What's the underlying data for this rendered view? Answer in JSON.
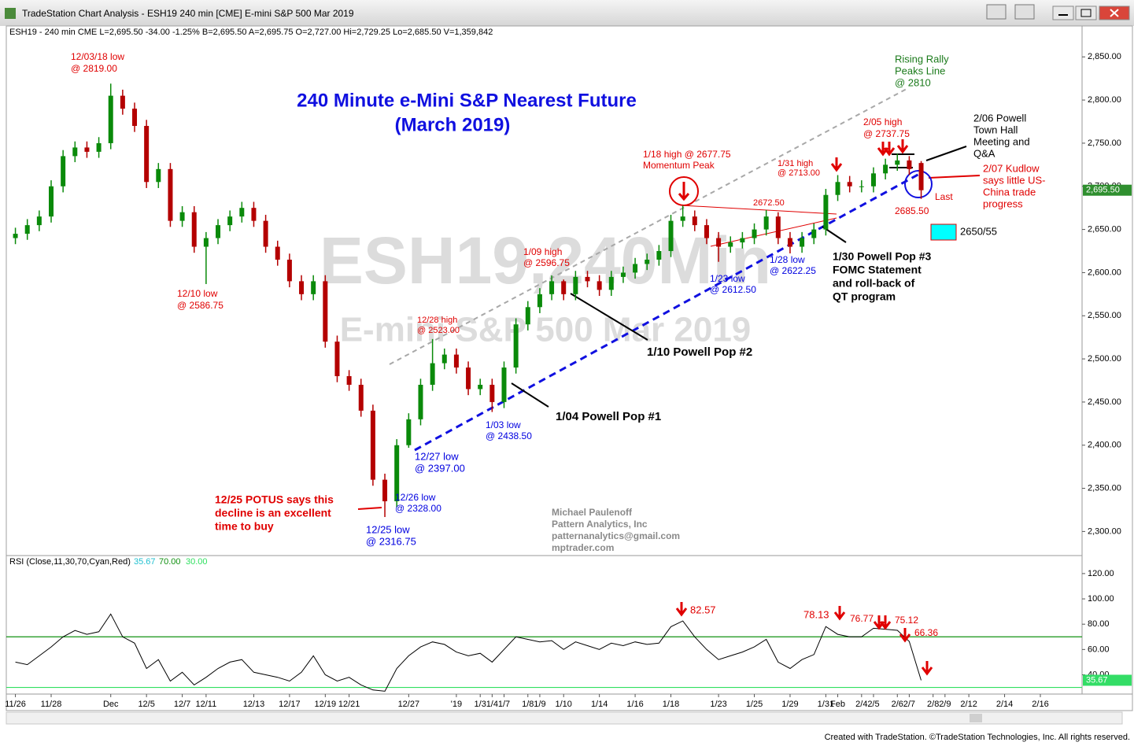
{
  "window": {
    "title": "TradeStation Chart Analysis - ESH19 240 min [CME] E-mini S&P 500 Mar 2019"
  },
  "footer": "Created with TradeStation. ©TradeStation Technologies, Inc. All rights reserved.",
  "chart_data": [
    {
      "type": "candlestick",
      "header": "ESH19 - 240 min  CME  L=2,695.50  -34.00  -1.25%  B=2,695.50  A=2,695.75  O=2,727.00  Hi=2,729.25  Lo=2,685.50  V=1,359,842",
      "title": "240 Minute e-Mini S&P Nearest Future",
      "subtitle": "(March 2019)",
      "watermark": [
        "ESH19,240Min",
        "E-mini S&P 500 Mar 2019"
      ],
      "categories": [
        "11/26",
        null,
        null,
        "11/28",
        null,
        null,
        null,
        null,
        "Dec",
        null,
        null,
        "12/5",
        null,
        null,
        "12/7",
        null,
        "12/11",
        null,
        null,
        null,
        "12/13",
        null,
        null,
        "12/17",
        null,
        null,
        "12/19",
        null,
        "12/21",
        null,
        null,
        null,
        null,
        "12/27",
        null,
        null,
        null,
        "'19",
        null,
        "1/3",
        "1/4",
        "1/7",
        null,
        "1/8",
        "1/9",
        null,
        "1/10",
        null,
        null,
        "1/14",
        null,
        null,
        "1/16",
        null,
        null,
        "1/18",
        null,
        null,
        null,
        "1/23",
        null,
        null,
        "1/25",
        null,
        null,
        "1/29",
        null,
        null,
        "1/31",
        "Feb",
        null,
        "2/4",
        "2/5",
        null,
        "2/6",
        "2/7",
        null,
        "2/8",
        "2/9",
        null,
        "2/12",
        null,
        null,
        "2/14",
        null,
        null,
        "2/16",
        null,
        null,
        null
      ],
      "open": [
        2640,
        2645,
        2655,
        2665,
        2700,
        2735,
        2745,
        2740,
        2750,
        2805,
        2790,
        2770,
        2705,
        2720,
        2660,
        2670,
        2630,
        2640,
        2655,
        2665,
        2675,
        2660,
        2630,
        2615,
        2590,
        2575,
        2590,
        2520,
        2480,
        2470,
        2440,
        2360,
        2335,
        2400,
        2430,
        2470,
        2495,
        2505,
        2490,
        2465,
        2470,
        2450,
        2490,
        2540,
        2560,
        2575,
        2590,
        2575,
        2595,
        2590,
        2580,
        2595,
        2600,
        2610,
        2615,
        2625,
        2660,
        2665,
        2655,
        2640,
        2630,
        2635,
        2640,
        2650,
        2665,
        2640,
        2630,
        2640,
        2650,
        2690,
        2705,
        2700,
        2700,
        2715,
        2725,
        2730,
        2727,
        null,
        null,
        null,
        null,
        null,
        null,
        null,
        null,
        null,
        null,
        null,
        null,
        null
      ],
      "high": [
        2652,
        2662,
        2672,
        2707,
        2742,
        2752,
        2752,
        2757,
        2819,
        2812,
        2797,
        2777,
        2727,
        2727,
        2677,
        2677,
        2647,
        2662,
        2672,
        2682,
        2682,
        2667,
        2637,
        2622,
        2597,
        2597,
        2597,
        2527,
        2487,
        2477,
        2447,
        2367,
        2407,
        2437,
        2477,
        2523,
        2512,
        2512,
        2497,
        2477,
        2477,
        2497,
        2547,
        2567,
        2582,
        2596.75,
        2592,
        2602,
        2602,
        2597,
        2602,
        2607,
        2617,
        2622,
        2632,
        2667,
        2677.75,
        2672,
        2662,
        2647,
        2642,
        2647,
        2657,
        2672.5,
        2670,
        2647,
        2647,
        2657,
        2697,
        2713,
        2712,
        2707,
        2722,
        2732,
        2737.75,
        2735,
        2729.25,
        null,
        null,
        null,
        null,
        null,
        null,
        null,
        null,
        null,
        null,
        null,
        null,
        null
      ],
      "low": [
        2633,
        2638,
        2648,
        2658,
        2693,
        2728,
        2733,
        2733,
        2743,
        2783,
        2763,
        2698,
        2698,
        2653,
        2653,
        2623,
        2586.75,
        2633,
        2648,
        2658,
        2653,
        2623,
        2608,
        2583,
        2568,
        2568,
        2513,
        2473,
        2463,
        2433,
        2353,
        2316.75,
        2328,
        2397,
        2423,
        2463,
        2488,
        2483,
        2458,
        2458,
        2438.5,
        2443,
        2483,
        2533,
        2553,
        2568,
        2568,
        2568,
        2583,
        2573,
        2573,
        2588,
        2593,
        2603,
        2608,
        2618,
        2653,
        2648,
        2633,
        2612.5,
        2623,
        2628,
        2633,
        2643,
        2633,
        2622.25,
        2623,
        2633,
        2643,
        2683,
        2693,
        2693,
        2693,
        2708,
        2718,
        2713,
        2685.5,
        null,
        null,
        null,
        null,
        null,
        null,
        null,
        null,
        null,
        null,
        null,
        null,
        null
      ],
      "close": [
        2645,
        2655,
        2665,
        2700,
        2735,
        2745,
        2740,
        2750,
        2805,
        2790,
        2770,
        2705,
        2720,
        2660,
        2670,
        2630,
        2640,
        2655,
        2665,
        2675,
        2660,
        2630,
        2615,
        2590,
        2575,
        2590,
        2520,
        2480,
        2470,
        2440,
        2360,
        2335,
        2400,
        2430,
        2470,
        2495,
        2505,
        2490,
        2465,
        2470,
        2450,
        2490,
        2540,
        2560,
        2575,
        2590,
        2575,
        2595,
        2590,
        2580,
        2595,
        2600,
        2610,
        2615,
        2625,
        2660,
        2665,
        2655,
        2640,
        2630,
        2635,
        2640,
        2650,
        2665,
        2640,
        2630,
        2640,
        2650,
        2690,
        2705,
        2700,
        2700,
        2715,
        2725,
        2730,
        2720,
        2695.5,
        null,
        null,
        null,
        null,
        null,
        null,
        null,
        null,
        null,
        null,
        null,
        null,
        null
      ],
      "up_color": "#0a8a0a",
      "down_color": "#b40000",
      "ylim": [
        2273,
        2884
      ],
      "yticks": [
        {
          "value": 2300,
          "label": "2,300.00"
        },
        {
          "value": 2350,
          "label": "2,350.00"
        },
        {
          "value": 2400,
          "label": "2,400.00"
        },
        {
          "value": 2450,
          "label": "2,450.00"
        },
        {
          "value": 2500,
          "label": "2,500.00"
        },
        {
          "value": 2550,
          "label": "2,550.00"
        },
        {
          "value": 2600,
          "label": "2,600.00"
        },
        {
          "value": 2650,
          "label": "2,650.00"
        },
        {
          "value": 2700,
          "label": "2,700.00"
        },
        {
          "value": 2750,
          "label": "2,750.00"
        },
        {
          "value": 2800,
          "label": "2,800.00"
        },
        {
          "value": 2850,
          "label": "2,850.00"
        }
      ],
      "last_label": "2,695.50",
      "annotations": [
        {
          "lines": [
            "12/03/18 low",
            "@ 2819.00"
          ],
          "color": "#e00000"
        },
        {
          "lines": [
            "12/10  low",
            "@ 2586.75"
          ],
          "color": "#e00000"
        },
        {
          "lines": [
            "12/25 POTUS says this",
            "decline is an excellent",
            "time to buy"
          ],
          "color": "#e00000"
        },
        {
          "lines": [
            "12/25 low",
            "@ 2316.75"
          ],
          "color": "#0000e0"
        },
        {
          "lines": [
            "12/26 low",
            "@ 2328.00"
          ],
          "color": "#0000e0"
        },
        {
          "lines": [
            "12/27 low",
            "@ 2397.00"
          ],
          "color": "#0000e0"
        },
        {
          "lines": [
            "12/28 high",
            "@ 2523.00"
          ],
          "color": "#e00000"
        },
        {
          "lines": [
            "1/03 low",
            "@ 2438.50"
          ],
          "color": "#0000e0"
        },
        {
          "lines": [
            "1/04 Powell Pop #1"
          ],
          "color": "#000000"
        },
        {
          "lines": [
            "1/09 high",
            "@ 2596.75"
          ],
          "color": "#e00000"
        },
        {
          "lines": [
            "1/10 Powell Pop #2"
          ],
          "color": "#000000"
        },
        {
          "lines": [
            "1/18 high @ 2677.75",
            "Momentum Peak"
          ],
          "color": "#e00000"
        },
        {
          "lines": [
            "2672.50"
          ],
          "color": "#e00000"
        },
        {
          "lines": [
            "1/23 low",
            "@ 2612.50"
          ],
          "color": "#0000e0"
        },
        {
          "lines": [
            "1/28 low",
            "@ 2622.25"
          ],
          "color": "#0000e0"
        },
        {
          "lines": [
            "1/30 Powell Pop #3",
            "FOMC Statement",
            "and roll-back of",
            "QT program"
          ],
          "color": "#000000"
        },
        {
          "lines": [
            "1/31 high",
            "@ 2713.00"
          ],
          "color": "#e00000"
        },
        {
          "lines": [
            "2/05 high",
            "@ 2737.75"
          ],
          "color": "#e00000"
        },
        {
          "lines": [
            "2/06 Powell",
            "Town Hall",
            "Meeting and",
            "Q&A"
          ],
          "color": "#000000"
        },
        {
          "lines": [
            "2/07 Kudlow",
            "says little US-",
            "China trade",
            "progress"
          ],
          "color": "#e00000"
        },
        {
          "lines": [
            "Last"
          ],
          "color": "#e00000"
        },
        {
          "lines": [
            "2685.50"
          ],
          "color": "#e00000"
        },
        {
          "lines": [
            "2650/55"
          ],
          "color": "#000000"
        },
        {
          "lines": [
            "Rising Rally",
            "Peaks Line",
            "@ 2810"
          ],
          "color": "#1a7a1a"
        },
        {
          "lines": [
            "Michael Paulenoff",
            "Pattern Analytics, Inc",
            "patternanalytics@gmail.com",
            "mptrader.com"
          ],
          "color": "#8a8a8a"
        }
      ]
    },
    {
      "type": "line",
      "header": "RSI (Close,11,30,70,Cyan,Red)",
      "last_label": "35.67",
      "color": "#000000",
      "values": [
        50,
        48,
        55,
        62,
        70,
        75,
        72,
        74,
        88,
        70,
        65,
        45,
        52,
        35,
        42,
        32,
        38,
        45,
        50,
        52,
        42,
        40,
        38,
        35,
        42,
        55,
        40,
        35,
        38,
        32,
        28,
        27,
        45,
        55,
        62,
        66,
        64,
        58,
        55,
        57,
        50,
        60,
        70,
        68,
        66,
        67,
        60,
        66,
        63,
        60,
        65,
        63,
        66,
        64,
        65,
        78,
        82.57,
        70,
        60,
        52,
        55,
        58,
        62,
        68,
        50,
        45,
        52,
        56,
        78.13,
        72,
        70,
        70,
        76.77,
        76,
        75.12,
        66.36,
        35.67,
        null,
        null,
        null,
        null,
        null,
        null,
        null,
        null,
        null,
        null,
        null,
        null,
        null
      ],
      "levels": [
        {
          "value": 70,
          "label": "70.00",
          "color": "#109010"
        },
        {
          "value": 30,
          "label": "30.00",
          "color": "#30e060"
        }
      ],
      "ylim": [
        26,
        133
      ],
      "yticks": [
        {
          "value": 40,
          "label": "40.00"
        },
        {
          "value": 60,
          "label": "60.00"
        },
        {
          "value": 80,
          "label": "80.00"
        },
        {
          "value": 100,
          "label": "100.00"
        },
        {
          "value": 120,
          "label": "120.00"
        }
      ],
      "annotations": [
        {
          "lines": [
            "82.57"
          ],
          "color": "#e00000"
        },
        {
          "lines": [
            "78.13"
          ],
          "color": "#e00000"
        },
        {
          "lines": [
            "76.77"
          ],
          "color": "#e00000"
        },
        {
          "lines": [
            "75.12"
          ],
          "color": "#e00000"
        },
        {
          "lines": [
            "66.36"
          ],
          "color": "#e00000"
        }
      ]
    }
  ]
}
